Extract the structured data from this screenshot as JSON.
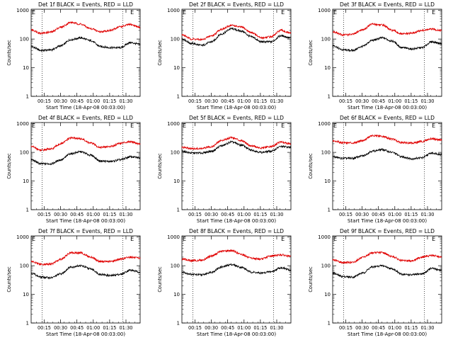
{
  "figure": {
    "xtick_labels": [
      "00:15",
      "00:30",
      "00:45",
      "01:00",
      "01:15",
      "01:30"
    ],
    "ytick_labels": [
      "1",
      "10",
      "100",
      "1000"
    ]
  },
  "chart_data": [
    {
      "type": "line",
      "title": "Det 1f BLACK = Events, RED = LLD",
      "xlabel": "Start Time (18-Apr-08 00:03:00)",
      "ylabel": "Counts/sec",
      "yscale": "log",
      "ylim": [
        1,
        1100
      ],
      "xlim": [
        0,
        100
      ],
      "x_ticks_minutes_from_start": [
        12,
        27,
        42,
        57,
        72,
        87
      ],
      "dotted_vlines": [
        10,
        84
      ],
      "marker": "E",
      "marker_x": 91,
      "series": [
        {
          "color": "#000000",
          "values": [
            55,
            40,
            42,
            58,
            95,
            110,
            88,
            55,
            50,
            50,
            75,
            65
          ]
        },
        {
          "color": "#e00000",
          "values": [
            210,
            160,
            175,
            260,
            380,
            330,
            230,
            180,
            200,
            270,
            320,
            260
          ]
        }
      ]
    },
    {
      "type": "line",
      "title": "Det 2f BLACK = Events, RED = LLD",
      "xlabel": "Start Time (18-Apr-08 00:03:00)",
      "ylabel": "Counts/sec",
      "yscale": "log",
      "ylim": [
        1,
        1100
      ],
      "xlim": [
        0,
        100
      ],
      "x_ticks_minutes_from_start": [
        12,
        27,
        42,
        57,
        72,
        87
      ],
      "dotted_vlines": [
        10,
        84
      ],
      "marker": "E",
      "marker_x": 91,
      "series": [
        {
          "color": "#000000",
          "values": [
            100,
            70,
            60,
            80,
            150,
            230,
            190,
            120,
            80,
            80,
            130,
            110
          ]
        },
        {
          "color": "#e00000",
          "values": [
            140,
            100,
            95,
            130,
            220,
            300,
            260,
            170,
            110,
            120,
            200,
            160
          ]
        }
      ]
    },
    {
      "type": "line",
      "title": "Det 3f BLACK = Events, RED = LLD",
      "xlabel": "Start Time (18-Apr-08 00:03:00)",
      "ylabel": "Counts/sec",
      "yscale": "log",
      "ylim": [
        1,
        1100
      ],
      "xlim": [
        0,
        100
      ],
      "x_ticks_minutes_from_start": [
        12,
        27,
        42,
        57,
        72,
        87
      ],
      "dotted_vlines": [
        10,
        84
      ],
      "marker": "E",
      "marker_x": 91,
      "series": [
        {
          "color": "#000000",
          "values": [
            60,
            42,
            40,
            55,
            90,
            110,
            85,
            50,
            45,
            50,
            80,
            70
          ]
        },
        {
          "color": "#e00000",
          "values": [
            180,
            140,
            145,
            210,
            330,
            310,
            200,
            150,
            160,
            200,
            220,
            200
          ]
        }
      ]
    },
    {
      "type": "line",
      "title": "Det 4f BLACK = Events, RED = LLD",
      "xlabel": "Start Time (18-Apr-08 00:03:00)",
      "ylabel": "Counts/sec",
      "yscale": "log",
      "ylim": [
        1,
        1100
      ],
      "xlim": [
        0,
        100
      ],
      "x_ticks_minutes_from_start": [
        12,
        27,
        42,
        57,
        72,
        87
      ],
      "dotted_vlines": [
        10,
        84
      ],
      "marker": "E",
      "marker_x": 91,
      "series": [
        {
          "color": "#000000",
          "values": [
            55,
            40,
            40,
            55,
            90,
            105,
            80,
            50,
            48,
            55,
            70,
            65
          ]
        },
        {
          "color": "#e00000",
          "values": [
            160,
            120,
            130,
            200,
            320,
            300,
            210,
            150,
            160,
            210,
            240,
            200
          ]
        }
      ]
    },
    {
      "type": "line",
      "title": "Det 5f BLACK = Events, RED = LLD",
      "xlabel": "Start Time (18-Apr-08 00:03:00)",
      "ylabel": "Counts/sec",
      "yscale": "log",
      "ylim": [
        1,
        1100
      ],
      "xlim": [
        0,
        100
      ],
      "x_ticks_minutes_from_start": [
        12,
        27,
        42,
        57,
        72,
        87
      ],
      "dotted_vlines": [
        10,
        84
      ],
      "marker": "E",
      "marker_x": 91,
      "series": [
        {
          "color": "#000000",
          "values": [
            110,
            95,
            95,
            110,
            170,
            230,
            180,
            120,
            100,
            110,
            160,
            150
          ]
        },
        {
          "color": "#e00000",
          "values": [
            150,
            135,
            135,
            160,
            260,
            330,
            260,
            170,
            140,
            160,
            230,
            200
          ]
        }
      ]
    },
    {
      "type": "line",
      "title": "Det 6f BLACK = Events, RED = LLD",
      "xlabel": "Start Time (18-Apr-08 00:03:00)",
      "ylabel": "Counts/sec",
      "yscale": "log",
      "ylim": [
        1,
        1100
      ],
      "xlim": [
        0,
        100
      ],
      "x_ticks_minutes_from_start": [
        12,
        27,
        42,
        57,
        72,
        87
      ],
      "dotted_vlines": [
        10,
        84
      ],
      "marker": "E",
      "marker_x": 91,
      "series": [
        {
          "color": "#000000",
          "values": [
            70,
            62,
            62,
            75,
            110,
            125,
            100,
            70,
            60,
            65,
            95,
            85
          ]
        },
        {
          "color": "#e00000",
          "values": [
            250,
            220,
            215,
            260,
            380,
            360,
            290,
            220,
            210,
            240,
            300,
            270
          ]
        }
      ]
    },
    {
      "type": "line",
      "title": "Det 7f BLACK = Events, RED = LLD",
      "xlabel": "Start Time (18-Apr-08 00:03:00)",
      "ylabel": "Counts/sec",
      "yscale": "log",
      "ylim": [
        1,
        1100
      ],
      "xlim": [
        0,
        100
      ],
      "x_ticks_minutes_from_start": [
        12,
        27,
        42,
        57,
        72,
        87
      ],
      "dotted_vlines": [
        10,
        84
      ],
      "marker": "E",
      "marker_x": 91,
      "series": [
        {
          "color": "#000000",
          "values": [
            55,
            40,
            38,
            52,
            90,
            100,
            78,
            50,
            45,
            50,
            70,
            60
          ]
        },
        {
          "color": "#e00000",
          "values": [
            140,
            110,
            115,
            170,
            280,
            280,
            200,
            140,
            140,
            170,
            200,
            180
          ]
        }
      ]
    },
    {
      "type": "line",
      "title": "Det 8f BLACK = Events, RED = LLD",
      "xlabel": "Start Time (18-Apr-08 00:03:00)",
      "ylabel": "Counts/sec",
      "yscale": "log",
      "ylim": [
        1,
        1100
      ],
      "xlim": [
        0,
        100
      ],
      "x_ticks_minutes_from_start": [
        12,
        27,
        42,
        57,
        72,
        87
      ],
      "dotted_vlines": [
        10,
        84
      ],
      "marker": "E",
      "marker_x": 91,
      "series": [
        {
          "color": "#000000",
          "values": [
            60,
            50,
            48,
            60,
            90,
            110,
            88,
            60,
            55,
            62,
            85,
            70
          ]
        },
        {
          "color": "#e00000",
          "values": [
            170,
            150,
            155,
            220,
            320,
            340,
            250,
            180,
            170,
            220,
            240,
            210
          ]
        }
      ]
    },
    {
      "type": "line",
      "title": "Det 9f BLACK = Events, RED = LLD",
      "xlabel": "Start Time (18-Apr-08 00:03:00)",
      "ylabel": "Counts/sec",
      "yscale": "log",
      "ylim": [
        1,
        1100
      ],
      "xlim": [
        0,
        100
      ],
      "x_ticks_minutes_from_start": [
        12,
        27,
        42,
        57,
        72,
        87
      ],
      "dotted_vlines": [
        10,
        84
      ],
      "marker": "E",
      "marker_x": 91,
      "series": [
        {
          "color": "#000000",
          "values": [
            55,
            42,
            40,
            55,
            90,
            100,
            78,
            50,
            48,
            52,
            80,
            70
          ]
        },
        {
          "color": "#e00000",
          "values": [
            160,
            130,
            130,
            190,
            280,
            290,
            210,
            150,
            150,
            200,
            230,
            200
          ]
        }
      ]
    }
  ]
}
